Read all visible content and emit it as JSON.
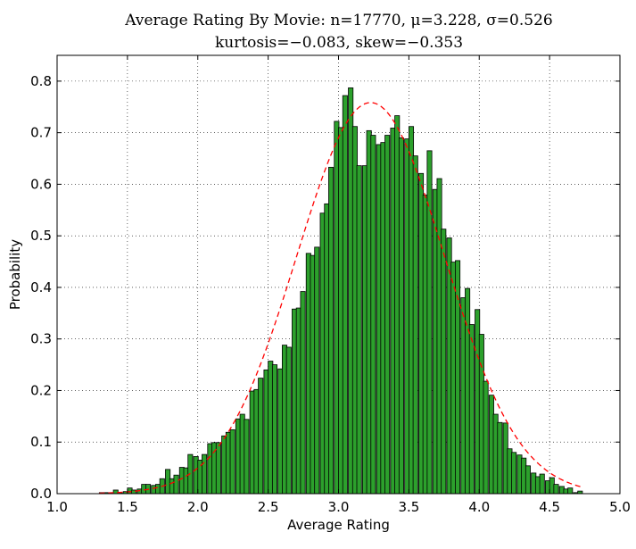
{
  "chart_data": {
    "type": "bar",
    "title": "Average Rating By Movie: n=17770, μ=3.228, σ=0.526",
    "subtitle": "kurtosis=−0.083, skew=−0.353",
    "xlabel": "Average Rating",
    "ylabel": "Probability",
    "xlim": [
      1.0,
      5.0
    ],
    "ylim": [
      0.0,
      0.85
    ],
    "xticks": [
      1.0,
      1.5,
      2.0,
      2.5,
      3.0,
      3.5,
      4.0,
      4.5,
      5.0
    ],
    "xtick_labels": [
      "1.0",
      "1.5",
      "2.0",
      "2.5",
      "3.0",
      "3.5",
      "4.0",
      "4.5",
      "5.0"
    ],
    "yticks": [
      0.0,
      0.1,
      0.2,
      0.3,
      0.4,
      0.5,
      0.6,
      0.7,
      0.8
    ],
    "ytick_labels": [
      "0.0",
      "0.1",
      "0.2",
      "0.3",
      "0.4",
      "0.5",
      "0.6",
      "0.7",
      "0.8"
    ],
    "grid": true,
    "bin_width": 0.0333,
    "histogram": {
      "color": "#2ca02c",
      "edge_color": "#000000",
      "bins": [
        {
          "x": 1.3,
          "y": 0.002
        },
        {
          "x": 1.33,
          "y": 0.002
        },
        {
          "x": 1.37,
          "y": 0.002
        },
        {
          "x": 1.4,
          "y": 0.007
        },
        {
          "x": 1.43,
          "y": 0.002
        },
        {
          "x": 1.47,
          "y": 0.004
        },
        {
          "x": 1.5,
          "y": 0.011
        },
        {
          "x": 1.53,
          "y": 0.007
        },
        {
          "x": 1.57,
          "y": 0.009
        },
        {
          "x": 1.6,
          "y": 0.018
        },
        {
          "x": 1.63,
          "y": 0.018
        },
        {
          "x": 1.67,
          "y": 0.016
        },
        {
          "x": 1.7,
          "y": 0.018
        },
        {
          "x": 1.73,
          "y": 0.029
        },
        {
          "x": 1.77,
          "y": 0.047
        },
        {
          "x": 1.8,
          "y": 0.029
        },
        {
          "x": 1.83,
          "y": 0.036
        },
        {
          "x": 1.87,
          "y": 0.051
        },
        {
          "x": 1.9,
          "y": 0.05
        },
        {
          "x": 1.93,
          "y": 0.076
        },
        {
          "x": 1.97,
          "y": 0.072
        },
        {
          "x": 2.0,
          "y": 0.065
        },
        {
          "x": 2.03,
          "y": 0.076
        },
        {
          "x": 2.07,
          "y": 0.097
        },
        {
          "x": 2.1,
          "y": 0.099
        },
        {
          "x": 2.13,
          "y": 0.099
        },
        {
          "x": 2.17,
          "y": 0.112
        },
        {
          "x": 2.2,
          "y": 0.119
        },
        {
          "x": 2.23,
          "y": 0.124
        },
        {
          "x": 2.27,
          "y": 0.145
        },
        {
          "x": 2.3,
          "y": 0.154
        },
        {
          "x": 2.33,
          "y": 0.144
        },
        {
          "x": 2.37,
          "y": 0.199
        },
        {
          "x": 2.4,
          "y": 0.202
        },
        {
          "x": 2.43,
          "y": 0.224
        },
        {
          "x": 2.47,
          "y": 0.24
        },
        {
          "x": 2.5,
          "y": 0.257
        },
        {
          "x": 2.53,
          "y": 0.25
        },
        {
          "x": 2.57,
          "y": 0.242
        },
        {
          "x": 2.6,
          "y": 0.288
        },
        {
          "x": 2.63,
          "y": 0.284
        },
        {
          "x": 2.67,
          "y": 0.358
        },
        {
          "x": 2.7,
          "y": 0.36
        },
        {
          "x": 2.73,
          "y": 0.392
        },
        {
          "x": 2.77,
          "y": 0.466
        },
        {
          "x": 2.8,
          "y": 0.462
        },
        {
          "x": 2.83,
          "y": 0.478
        },
        {
          "x": 2.87,
          "y": 0.544
        },
        {
          "x": 2.9,
          "y": 0.562
        },
        {
          "x": 2.93,
          "y": 0.633
        },
        {
          "x": 2.97,
          "y": 0.722
        },
        {
          "x": 3.0,
          "y": 0.71
        },
        {
          "x": 3.03,
          "y": 0.772
        },
        {
          "x": 3.07,
          "y": 0.787
        },
        {
          "x": 3.1,
          "y": 0.712
        },
        {
          "x": 3.13,
          "y": 0.636
        },
        {
          "x": 3.17,
          "y": 0.636
        },
        {
          "x": 3.2,
          "y": 0.704
        },
        {
          "x": 3.23,
          "y": 0.695
        },
        {
          "x": 3.27,
          "y": 0.677
        },
        {
          "x": 3.3,
          "y": 0.681
        },
        {
          "x": 3.33,
          "y": 0.695
        },
        {
          "x": 3.37,
          "y": 0.709
        },
        {
          "x": 3.4,
          "y": 0.733
        },
        {
          "x": 3.43,
          "y": 0.69
        },
        {
          "x": 3.47,
          "y": 0.688
        },
        {
          "x": 3.5,
          "y": 0.712
        },
        {
          "x": 3.53,
          "y": 0.655
        },
        {
          "x": 3.57,
          "y": 0.621
        },
        {
          "x": 3.6,
          "y": 0.579
        },
        {
          "x": 3.63,
          "y": 0.665
        },
        {
          "x": 3.67,
          "y": 0.59
        },
        {
          "x": 3.7,
          "y": 0.611
        },
        {
          "x": 3.73,
          "y": 0.513
        },
        {
          "x": 3.77,
          "y": 0.496
        },
        {
          "x": 3.8,
          "y": 0.449
        },
        {
          "x": 3.83,
          "y": 0.452
        },
        {
          "x": 3.87,
          "y": 0.38
        },
        {
          "x": 3.9,
          "y": 0.398
        },
        {
          "x": 3.93,
          "y": 0.328
        },
        {
          "x": 3.97,
          "y": 0.357
        },
        {
          "x": 4.0,
          "y": 0.309
        },
        {
          "x": 4.03,
          "y": 0.218
        },
        {
          "x": 4.07,
          "y": 0.191
        },
        {
          "x": 4.1,
          "y": 0.154
        },
        {
          "x": 4.13,
          "y": 0.138
        },
        {
          "x": 4.17,
          "y": 0.137
        },
        {
          "x": 4.2,
          "y": 0.087
        },
        {
          "x": 4.23,
          "y": 0.08
        },
        {
          "x": 4.27,
          "y": 0.075
        },
        {
          "x": 4.3,
          "y": 0.069
        },
        {
          "x": 4.33,
          "y": 0.054
        },
        {
          "x": 4.37,
          "y": 0.04
        },
        {
          "x": 4.4,
          "y": 0.033
        },
        {
          "x": 4.43,
          "y": 0.038
        },
        {
          "x": 4.47,
          "y": 0.025
        },
        {
          "x": 4.5,
          "y": 0.031
        },
        {
          "x": 4.53,
          "y": 0.018
        },
        {
          "x": 4.57,
          "y": 0.014
        },
        {
          "x": 4.6,
          "y": 0.009
        },
        {
          "x": 4.63,
          "y": 0.011
        },
        {
          "x": 4.67,
          "y": 0.002
        },
        {
          "x": 4.7,
          "y": 0.005
        }
      ]
    },
    "fit_curve": {
      "style": "dashed",
      "color": "#ff0000",
      "mean": 3.228,
      "std": 0.526,
      "x_range": [
        1.3,
        4.73
      ]
    }
  }
}
